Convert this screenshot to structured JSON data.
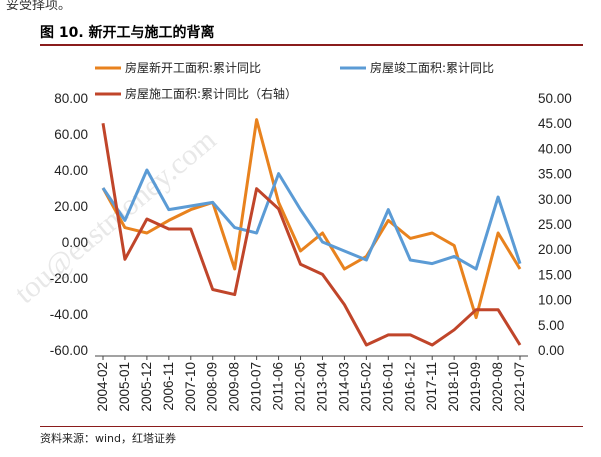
{
  "header": {
    "top_cut_text": "妥受择项。"
  },
  "figure": {
    "title": "图 10. 新开工与施工的背离",
    "source": "资料来源：wind，红塔证券",
    "watermark": "tou@eastmoney.com"
  },
  "colors": {
    "new_starts": "#e8821e",
    "completion": "#5b9bd5",
    "construction": "#c0452a",
    "rule": "#8a1c1c"
  },
  "chart_data": {
    "type": "line",
    "title": "图 10. 新开工与施工的背离",
    "categories": [
      "2004-02",
      "2005-01",
      "2005-12",
      "2006-11",
      "2007-10",
      "2008-09",
      "2009-08",
      "2010-07",
      "2011-06",
      "2012-05",
      "2013-04",
      "2014-03",
      "2015-02",
      "2016-01",
      "2016-12",
      "2017-11",
      "2018-10",
      "2019-09",
      "2020-08",
      "2021-07"
    ],
    "left_axis": {
      "ylim": [
        -60,
        80
      ],
      "ticks": [
        "80.00",
        "60.00",
        "40.00",
        "20.00",
        "0.00",
        "-20.00",
        "-40.00",
        "-60.00"
      ]
    },
    "right_axis": {
      "ylim": [
        0,
        50
      ],
      "ticks": [
        "50.00",
        "45.00",
        "40.00",
        "35.00",
        "30.00",
        "25.00",
        "20.00",
        "15.00",
        "10.00",
        "5.00",
        "0.00"
      ]
    },
    "legend": [
      "房屋新开工面积:累计同比",
      "房屋竣工面积:累计同比",
      "房屋施工面积:累计同比（右轴）"
    ],
    "series": [
      {
        "name": "房屋新开工面积:累计同比",
        "axis": "left",
        "color": "#e8821e",
        "values": [
          30,
          8,
          5,
          12,
          18,
          22,
          -15,
          68,
          22,
          -5,
          5,
          -15,
          -8,
          12,
          2,
          5,
          -2,
          -42,
          5,
          -15
        ]
      },
      {
        "name": "房屋竣工面积:累计同比",
        "axis": "left",
        "color": "#5b9bd5",
        "values": [
          30,
          12,
          40,
          18,
          20,
          22,
          8,
          5,
          38,
          18,
          0,
          -5,
          -10,
          18,
          -10,
          -12,
          -8,
          -15,
          25,
          -12
        ]
      },
      {
        "name": "房屋施工面积:累计同比（右轴）",
        "axis": "right",
        "color": "#c0452a",
        "values": [
          45,
          18,
          26,
          24,
          24,
          12,
          11,
          32,
          28,
          17,
          15,
          9,
          1,
          3,
          3,
          1,
          4,
          8,
          8,
          1
        ]
      }
    ]
  }
}
